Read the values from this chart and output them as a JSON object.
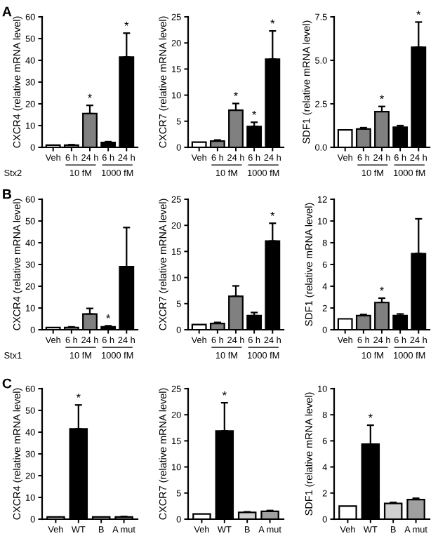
{
  "chart_data": [
    {
      "type": "bar",
      "title": "A",
      "ylabel": "CXCR4 (relative mRNA level)",
      "categories": [
        "Veh",
        "6 h",
        "24 h",
        "6 h",
        "24 h"
      ],
      "values": [
        1,
        1,
        15.5,
        2.2,
        41.5
      ],
      "colors": [
        "#ffffff",
        "#808080",
        "#808080",
        "#000000",
        "#000000"
      ],
      "errors": [
        null,
        [
          1,
          1.2
        ],
        [
          15.5,
          19.3
        ],
        [
          2.2,
          2.6
        ],
        [
          41.5,
          52.5
        ]
      ],
      "value_labels": [
        null,
        null,
        "*",
        null,
        "*"
      ],
      "ylim": [
        0,
        60
      ],
      "yticks": [
        0,
        10,
        20,
        30,
        40,
        50,
        60
      ],
      "annotations": [
        "Stx2",
        "10 fM",
        "1000 fM"
      ]
    },
    {
      "type": "bar",
      "ylabel": "CXCR7 (relative mRNA level)",
      "categories": [
        "Veh",
        "6 h",
        "24 h",
        "6 h",
        "24 h"
      ],
      "values": [
        1,
        1.2,
        7.1,
        4.0,
        16.9
      ],
      "colors": [
        "#ffffff",
        "#808080",
        "#808080",
        "#000000",
        "#000000"
      ],
      "errors": [
        null,
        [
          1.2,
          1.4
        ],
        [
          7.1,
          8.4
        ],
        [
          4.0,
          4.8
        ],
        [
          16.9,
          22.3
        ]
      ],
      "value_labels": [
        null,
        null,
        "*",
        "*",
        "*"
      ],
      "ylim": [
        0,
        25
      ],
      "yticks": [
        0,
        5,
        10,
        15,
        20,
        25
      ],
      "annotations": [
        "10 fM",
        "1000 fM"
      ]
    },
    {
      "type": "bar",
      "ylabel": "SDF1 (relative mRNA level)",
      "categories": [
        "Veh",
        "6 h",
        "24 h",
        "6 h",
        "24 h"
      ],
      "values": [
        1.0,
        1.05,
        2.05,
        1.15,
        5.75
      ],
      "colors": [
        "#ffffff",
        "#808080",
        "#808080",
        "#000000",
        "#000000"
      ],
      "errors": [
        null,
        [
          1.05,
          1.13
        ],
        [
          2.05,
          2.35
        ],
        [
          1.15,
          1.25
        ],
        [
          5.75,
          7.2
        ]
      ],
      "value_labels": [
        null,
        null,
        "*",
        null,
        "*"
      ],
      "ylim": [
        0,
        7.5
      ],
      "yticks": [
        {
          "value": 0,
          "label": "0.0"
        },
        {
          "value": 2.5,
          "label": "2.5"
        },
        {
          "value": 5,
          "label": "5.0"
        },
        {
          "value": 7.5,
          "label": "7.5"
        }
      ],
      "annotations": [
        "10 fM",
        "1000 fM"
      ]
    },
    {
      "type": "bar",
      "title": "B",
      "ylabel": "CXCR4 (relative mRNA level)",
      "categories": [
        "Veh",
        "6 h",
        "24 h",
        "6 h",
        "24 h"
      ],
      "values": [
        1,
        1,
        7.2,
        1.3,
        29
      ],
      "colors": [
        "#ffffff",
        "#808080",
        "#808080",
        "#000000",
        "#000000"
      ],
      "errors": [
        null,
        [
          1,
          1.3
        ],
        [
          7.2,
          9.8
        ],
        [
          1.3,
          1.8
        ],
        [
          29,
          47
        ]
      ],
      "value_labels": [
        null,
        null,
        null,
        "*",
        null
      ],
      "ylim": [
        0,
        60
      ],
      "yticks": [
        0,
        10,
        20,
        30,
        40,
        50,
        60
      ],
      "annotations": [
        "Stx1",
        "10 fM",
        "1000 fM"
      ]
    },
    {
      "type": "bar",
      "ylabel": "CXCR7 (relative mRNA level)",
      "categories": [
        "Veh",
        "6 h",
        "24 h",
        "6 h",
        "24 h"
      ],
      "values": [
        1,
        1.2,
        6.4,
        2.7,
        17
      ],
      "colors": [
        "#ffffff",
        "#808080",
        "#808080",
        "#000000",
        "#000000"
      ],
      "errors": [
        null,
        [
          1.2,
          1.4
        ],
        [
          6.4,
          8.4
        ],
        [
          2.7,
          3.3
        ],
        [
          17,
          20.4
        ]
      ],
      "value_labels": [
        null,
        null,
        null,
        null,
        "*"
      ],
      "ylim": [
        0,
        25
      ],
      "yticks": [
        0,
        5,
        10,
        15,
        20,
        25
      ],
      "annotations": [
        "10 fM",
        "1000 fM"
      ]
    },
    {
      "type": "bar",
      "ylabel": "SDF1 (relative mRNA level)",
      "categories": [
        "Veh",
        "6 h",
        "24 h",
        "6 h",
        "24 h"
      ],
      "values": [
        1,
        1.3,
        2.5,
        1.3,
        7
      ],
      "colors": [
        "#ffffff",
        "#808080",
        "#808080",
        "#000000",
        "#000000"
      ],
      "errors": [
        null,
        [
          1.3,
          1.4
        ],
        [
          2.5,
          2.9
        ],
        [
          1.3,
          1.45
        ],
        [
          7,
          10.2
        ]
      ],
      "value_labels": [
        null,
        null,
        "*",
        null,
        null
      ],
      "ylim": [
        0,
        12
      ],
      "yticks": [
        0,
        2,
        4,
        6,
        8,
        10,
        12
      ],
      "annotations": [
        "10 fM",
        "1000 fM"
      ]
    },
    {
      "type": "bar",
      "title": "C",
      "ylabel": "CXCR4 (relative mRNA level)",
      "categories": [
        "Veh",
        "WT",
        "B",
        "A mut"
      ],
      "values": [
        1,
        41.5,
        1,
        1
      ],
      "colors": [
        "#ffffff",
        "#000000",
        "#d0d0d0",
        "#a0a0a0"
      ],
      "errors": [
        null,
        [
          41.5,
          52.5
        ],
        null,
        [
          1,
          1.2
        ]
      ],
      "value_labels": [
        null,
        "*",
        null,
        null
      ],
      "ylim": [
        0,
        60
      ],
      "yticks": [
        0,
        10,
        20,
        30,
        40,
        50,
        60
      ]
    },
    {
      "type": "bar",
      "ylabel": "CXCR7 (relative mRNA level)",
      "categories": [
        "Veh",
        "WT",
        "B",
        "A mut"
      ],
      "values": [
        1,
        16.9,
        1.3,
        1.5
      ],
      "colors": [
        "#ffffff",
        "#000000",
        "#d0d0d0",
        "#a0a0a0"
      ],
      "errors": [
        null,
        [
          16.9,
          22.3
        ],
        [
          1.3,
          1.4
        ],
        [
          1.5,
          1.65
        ]
      ],
      "value_labels": [
        null,
        "*",
        null,
        null
      ],
      "ylim": [
        0,
        25
      ],
      "yticks": [
        0,
        5,
        10,
        15,
        20,
        25
      ]
    },
    {
      "type": "bar",
      "ylabel": "SDF1 (relative mRNA level)",
      "categories": [
        "Veh",
        "WT",
        "B",
        "A mut"
      ],
      "values": [
        1,
        5.75,
        1.2,
        1.5
      ],
      "colors": [
        "#ffffff",
        "#000000",
        "#d0d0d0",
        "#a0a0a0"
      ],
      "errors": [
        null,
        [
          5.75,
          7.2
        ],
        [
          1.2,
          1.28
        ],
        [
          1.5,
          1.6
        ]
      ],
      "value_labels": [
        null,
        "*",
        null,
        null
      ],
      "ylim": [
        0,
        10
      ],
      "yticks": [
        0,
        2,
        4,
        6,
        8,
        10
      ]
    }
  ]
}
